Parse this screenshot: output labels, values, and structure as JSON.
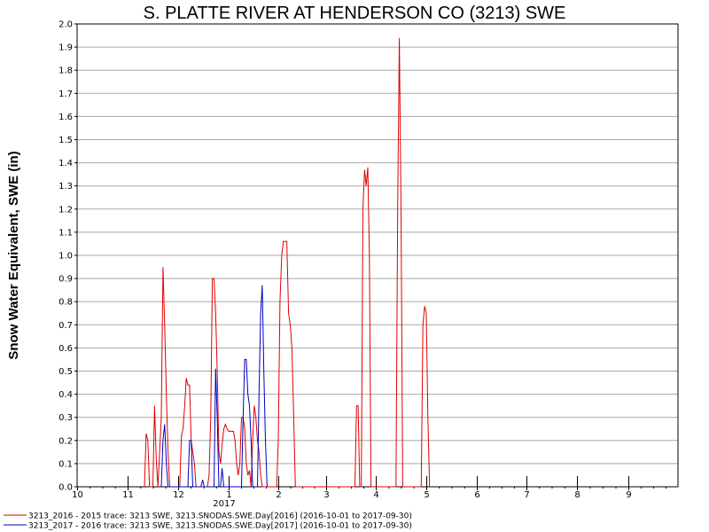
{
  "chart_data": {
    "type": "line",
    "title": "S. PLATTE RIVER AT HENDERSON CO (3213) SWE",
    "ylabel": "Snow Water Equivalent, SWE (in)",
    "xlabel": "",
    "ylim": [
      0,
      2.0
    ],
    "yticks": [
      "0.0",
      "0.1",
      "0.2",
      "0.3",
      "0.4",
      "0.5",
      "0.6",
      "0.7",
      "0.8",
      "0.9",
      "1.0",
      "1.1",
      "1.2",
      "1.3",
      "1.4",
      "1.5",
      "1.6",
      "1.7",
      "1.8",
      "1.9",
      "2.0"
    ],
    "xticks": [
      "10",
      "11",
      "12",
      "1",
      "2",
      "3",
      "4",
      "5",
      "6",
      "7",
      "8",
      "9"
    ],
    "year_label": "2017",
    "grid": "horizontal",
    "legend_position": "bottom",
    "series": [
      {
        "name": "3213_2016 - 2015 trace: 3213 SWE, 3213.SNODAS.SWE.Day[2016] (2016-10-01 to 2017-09-30)",
        "color": "#e00000",
        "points": [
          [
            "2016-11-11",
            0
          ],
          [
            "2016-11-12",
            0.23
          ],
          [
            "2016-11-13",
            0.2
          ],
          [
            "2016-11-14",
            0
          ],
          [
            "2016-11-16",
            0
          ],
          [
            "2016-11-17",
            0.35
          ],
          [
            "2016-11-18",
            0.12
          ],
          [
            "2016-11-19",
            0
          ],
          [
            "2016-11-21",
            0.3
          ],
          [
            "2016-11-22",
            0.95
          ],
          [
            "2016-11-23",
            0.7
          ],
          [
            "2016-11-24",
            0.4
          ],
          [
            "2016-11-25",
            0.15
          ],
          [
            "2016-11-26",
            0
          ],
          [
            "2016-12-02",
            0
          ],
          [
            "2016-12-03",
            0.22
          ],
          [
            "2016-12-04",
            0.25
          ],
          [
            "2016-12-05",
            0.35
          ],
          [
            "2016-12-06",
            0.47
          ],
          [
            "2016-12-07",
            0.44
          ],
          [
            "2016-12-08",
            0.44
          ],
          [
            "2016-12-09",
            0.2
          ],
          [
            "2016-12-10",
            0.15
          ],
          [
            "2016-12-11",
            0.1
          ],
          [
            "2016-12-12",
            0
          ],
          [
            "2016-12-19",
            0
          ],
          [
            "2016-12-20",
            0.05
          ],
          [
            "2016-12-21",
            0.3
          ],
          [
            "2016-12-22",
            0.9
          ],
          [
            "2016-12-23",
            0.9
          ],
          [
            "2016-12-24",
            0.75
          ],
          [
            "2016-12-25",
            0.5
          ],
          [
            "2016-12-26",
            0.15
          ],
          [
            "2016-12-27",
            0.1
          ],
          [
            "2016-12-28",
            0.18
          ],
          [
            "2016-12-29",
            0.25
          ],
          [
            "2016-12-30",
            0.27
          ],
          [
            "2016-12-31",
            0.25
          ],
          [
            "2017-01-01",
            0.24
          ],
          [
            "2017-01-02",
            0.24
          ],
          [
            "2017-01-03",
            0.24
          ],
          [
            "2017-01-04",
            0.24
          ],
          [
            "2017-01-05",
            0.2
          ],
          [
            "2017-01-06",
            0.1
          ],
          [
            "2017-01-07",
            0.05
          ],
          [
            "2017-01-08",
            0.1
          ],
          [
            "2017-01-09",
            0.3
          ],
          [
            "2017-01-10",
            0.3
          ],
          [
            "2017-01-11",
            0.25
          ],
          [
            "2017-01-12",
            0.1
          ],
          [
            "2017-01-13",
            0.05
          ],
          [
            "2017-01-14",
            0.07
          ],
          [
            "2017-01-15",
            0
          ],
          [
            "2017-01-16",
            0.2
          ],
          [
            "2017-01-17",
            0.35
          ],
          [
            "2017-01-18",
            0.3
          ],
          [
            "2017-01-19",
            0.2
          ],
          [
            "2017-01-20",
            0.15
          ],
          [
            "2017-01-21",
            0.05
          ],
          [
            "2017-01-22",
            0
          ],
          [
            "2017-01-31",
            0
          ],
          [
            "2017-02-01",
            0.2
          ],
          [
            "2017-02-02",
            0.8
          ],
          [
            "2017-02-03",
            1.0
          ],
          [
            "2017-02-04",
            1.06
          ],
          [
            "2017-02-05",
            1.06
          ],
          [
            "2017-02-06",
            1.06
          ],
          [
            "2017-02-07",
            0.75
          ],
          [
            "2017-02-08",
            0.7
          ],
          [
            "2017-02-09",
            0.6
          ],
          [
            "2017-02-10",
            0.3
          ],
          [
            "2017-02-11",
            0
          ],
          [
            "2017-03-19",
            0
          ],
          [
            "2017-03-20",
            0.35
          ],
          [
            "2017-03-21",
            0.35
          ],
          [
            "2017-03-22",
            0
          ],
          [
            "2017-03-23",
            0
          ],
          [
            "2017-03-24",
            1.2
          ],
          [
            "2017-03-25",
            1.37
          ],
          [
            "2017-03-26",
            1.3
          ],
          [
            "2017-03-27",
            1.38
          ],
          [
            "2017-03-28",
            1.0
          ],
          [
            "2017-03-29",
            0
          ],
          [
            "2017-04-13",
            0
          ],
          [
            "2017-04-14",
            1.2
          ],
          [
            "2017-04-15",
            1.94
          ],
          [
            "2017-04-16",
            1.2
          ],
          [
            "2017-04-17",
            0
          ],
          [
            "2017-04-28",
            0
          ],
          [
            "2017-04-29",
            0.7
          ],
          [
            "2017-04-30",
            0.78
          ],
          [
            "2017-05-01",
            0.75
          ],
          [
            "2017-05-02",
            0.3
          ],
          [
            "2017-05-03",
            0
          ]
        ]
      },
      {
        "name": "3213_2017 - 2016 trace: 3213 SWE, 3213.SNODAS.SWE.Day[2017] (2016-10-01 to 2017-09-30)",
        "color": "#0000c0",
        "points": [
          [
            "2016-11-21",
            0
          ],
          [
            "2016-11-22",
            0.2
          ],
          [
            "2016-11-23",
            0.27
          ],
          [
            "2016-11-24",
            0.1
          ],
          [
            "2016-11-25",
            0
          ],
          [
            "2016-12-07",
            0
          ],
          [
            "2016-12-08",
            0.2
          ],
          [
            "2016-12-09",
            0.2
          ],
          [
            "2016-12-10",
            0
          ],
          [
            "2016-12-15",
            0
          ],
          [
            "2016-12-16",
            0.03
          ],
          [
            "2016-12-17",
            0
          ],
          [
            "2016-12-23",
            0
          ],
          [
            "2016-12-24",
            0.51
          ],
          [
            "2016-12-25",
            0.3
          ],
          [
            "2016-12-26",
            0
          ],
          [
            "2016-12-27",
            0
          ],
          [
            "2016-12-28",
            0.08
          ],
          [
            "2016-12-29",
            0
          ],
          [
            "2017-01-09",
            0
          ],
          [
            "2017-01-10",
            0.3
          ],
          [
            "2017-01-11",
            0.55
          ],
          [
            "2017-01-12",
            0.55
          ],
          [
            "2017-01-13",
            0.4
          ],
          [
            "2017-01-14",
            0.35
          ],
          [
            "2017-01-15",
            0.2
          ],
          [
            "2017-01-16",
            0
          ],
          [
            "2017-01-19",
            0
          ],
          [
            "2017-01-20",
            0.4
          ],
          [
            "2017-01-21",
            0.75
          ],
          [
            "2017-01-22",
            0.87
          ],
          [
            "2017-01-23",
            0.5
          ],
          [
            "2017-01-24",
            0.2
          ],
          [
            "2017-01-25",
            0
          ]
        ]
      }
    ]
  }
}
